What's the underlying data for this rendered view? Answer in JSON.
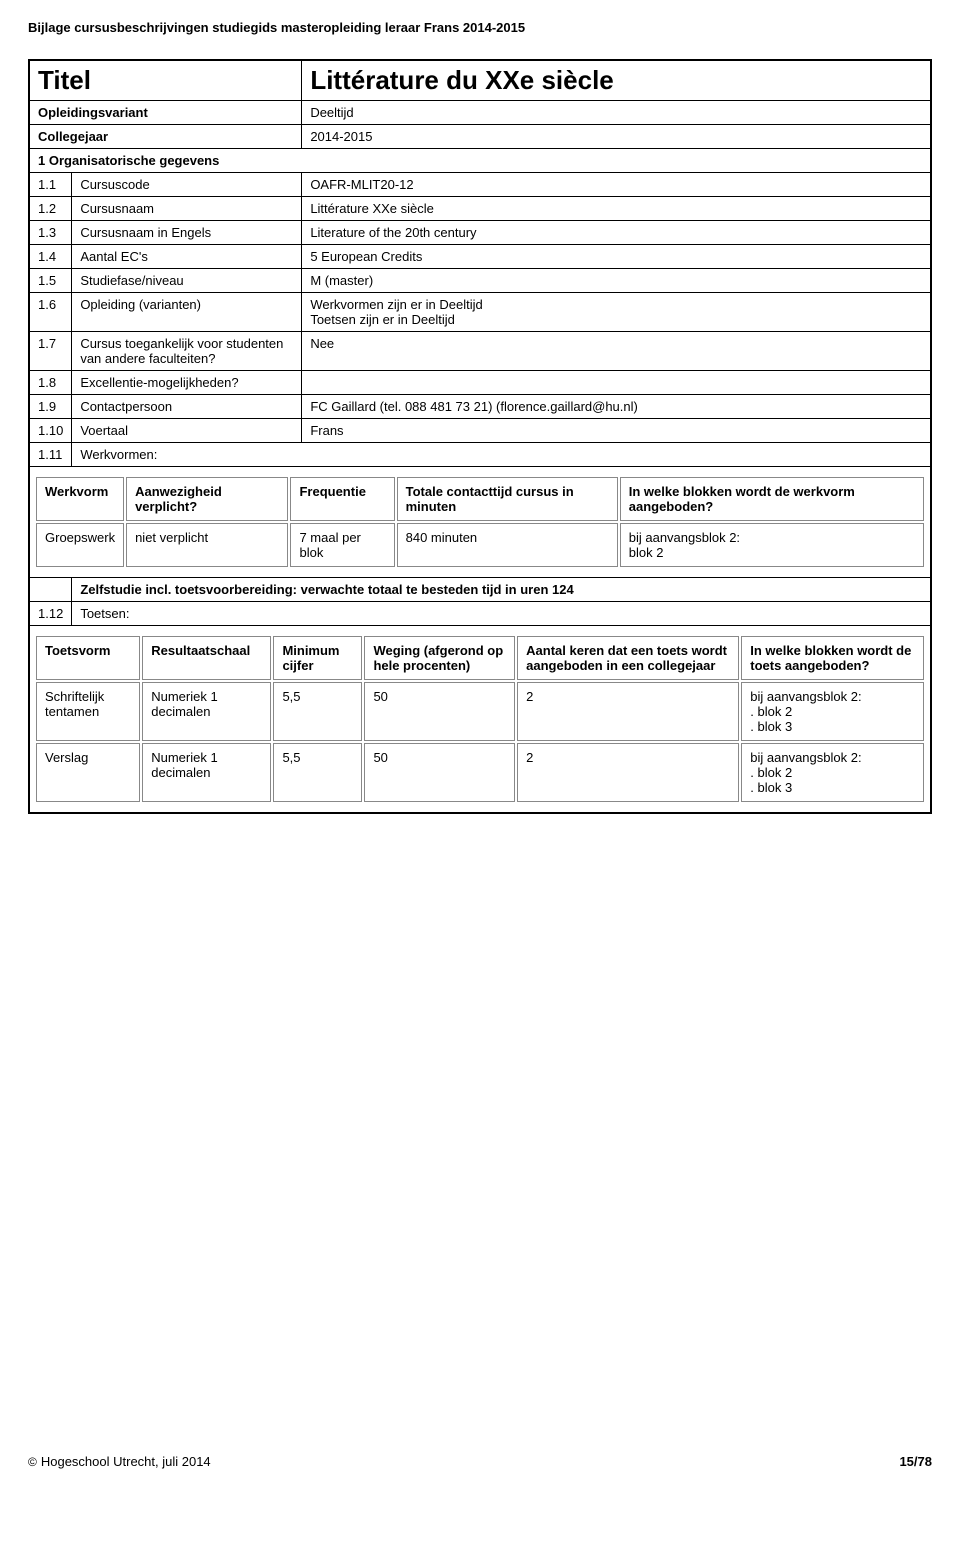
{
  "page_header": "Bijlage cursusbeschrijvingen studiegids masteropleiding leraar Frans 2014-2015",
  "title_row": {
    "label": "Titel",
    "value": "Littérature du XXe siècle"
  },
  "opleiding_row": {
    "label": "Opleidingsvariant",
    "value": "Deeltijd"
  },
  "college_row": {
    "label": "Collegejaar",
    "value": "2014-2015"
  },
  "section1": "1 Organisatorische gegevens",
  "rows": [
    {
      "num": "1.1",
      "label": "Cursuscode",
      "value": "OAFR-MLIT20-12"
    },
    {
      "num": "1.2",
      "label": "Cursusnaam",
      "value": "Littérature XXe siècle"
    },
    {
      "num": "1.3",
      "label": "Cursusnaam in Engels",
      "value": "Literature of the 20th century"
    },
    {
      "num": "1.4",
      "label": "Aantal EC's",
      "value": "5 European Credits"
    },
    {
      "num": "1.5",
      "label": "Studiefase/niveau",
      "value": "M (master)"
    },
    {
      "num": "1.6",
      "label": "Opleiding (varianten)",
      "value": "Werkvormen zijn er in Deeltijd\nToetsen zijn er in Deeltijd"
    },
    {
      "num": "1.7",
      "label": "Cursus toegankelijk voor studenten van andere faculteiten?",
      "value": "Nee"
    },
    {
      "num": "1.8",
      "label": "Excellentie-mogelijkheden?",
      "value": ""
    },
    {
      "num": "1.9",
      "label": "Contactpersoon",
      "value": "FC Gaillard (tel. 088 481 73 21) (florence.gaillard@hu.nl)"
    },
    {
      "num": "1.10",
      "label": "Voertaal",
      "value": "Frans"
    }
  ],
  "row111": {
    "num": "1.11",
    "label": "Werkvormen:"
  },
  "werkvormen": {
    "headers": [
      "Werkvorm",
      "Aanwezigheid verplicht?",
      "Frequentie",
      "Totale contacttijd cursus in minuten",
      "In welke blokken wordt de werkvorm aangeboden?"
    ],
    "rows": [
      [
        "Groepswerk",
        "niet verplicht",
        "7 maal per blok",
        "840 minuten",
        "bij aanvangsblok 2:\nblok 2"
      ]
    ]
  },
  "zelfstudie": "Zelfstudie incl. toetsvoorbereiding: verwachte totaal te besteden tijd in uren 124",
  "row112": {
    "num": "1.12",
    "label": "Toetsen:"
  },
  "toetsen": {
    "headers": [
      "Toetsvorm",
      "Resultaatschaal",
      "Minimum cijfer",
      "Weging (afgerond op hele procenten)",
      "Aantal keren dat een toets wordt aangeboden in een collegejaar",
      "In welke blokken wordt de toets aangeboden?"
    ],
    "rows": [
      [
        "Schriftelijk tentamen",
        "Numeriek 1 decimalen",
        "5,5",
        "50",
        "2",
        "bij aanvangsblok 2:\n. blok 2\n. blok 3"
      ],
      [
        "Verslag",
        "Numeriek 1 decimalen",
        "5,5",
        "50",
        "2",
        "bij aanvangsblok 2:\n. blok 2\n. blok 3"
      ]
    ]
  },
  "footer": {
    "left": "Hogeschool Utrecht, juli 2014",
    "copy": "©",
    "right": "15/78"
  }
}
